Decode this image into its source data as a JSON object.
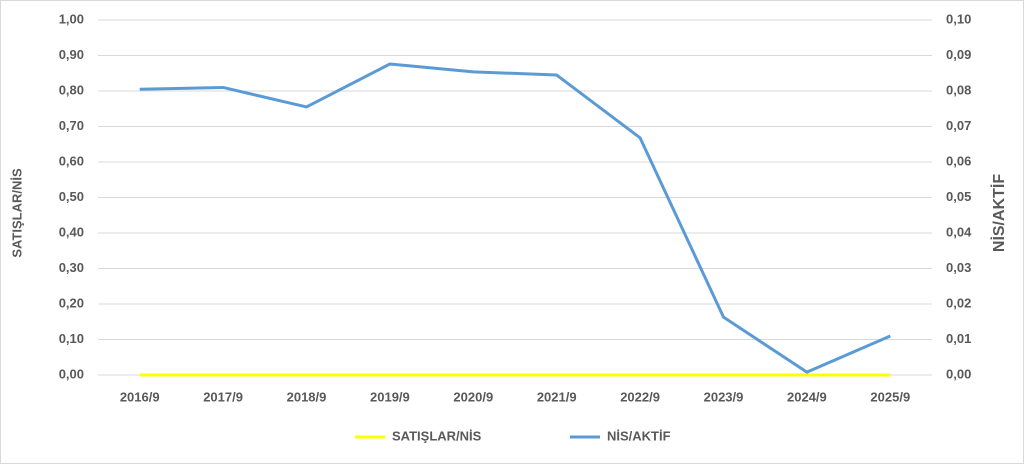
{
  "chart_data": {
    "type": "line",
    "categories": [
      "2016/9",
      "2017/9",
      "2018/9",
      "2019/9",
      "2020/9",
      "2021/9",
      "2022/9",
      "2023/9",
      "2024/9",
      "2025/9"
    ],
    "y_label": "SATIŞLAR/NİS",
    "y2_label": "NİS/AKTİF",
    "ylim": [
      0,
      1
    ],
    "yticks": [
      {
        "value": 0,
        "label": "0,00"
      },
      {
        "value": 0.1,
        "label": "0,10"
      },
      {
        "value": 0.2,
        "label": "0,20"
      },
      {
        "value": 0.3,
        "label": "0,30"
      },
      {
        "value": 0.4,
        "label": "0,40"
      },
      {
        "value": 0.5,
        "label": "0,50"
      },
      {
        "value": 0.6,
        "label": "0,60"
      },
      {
        "value": 0.7,
        "label": "0,70"
      },
      {
        "value": 0.8,
        "label": "0,80"
      },
      {
        "value": 0.9,
        "label": "0,90"
      },
      {
        "value": 1,
        "label": "1,00"
      }
    ],
    "y2lim": [
      0,
      0.1
    ],
    "y2ticks": [
      {
        "value": 0,
        "label": "0,00"
      },
      {
        "value": 0.01,
        "label": "0,01"
      },
      {
        "value": 0.02,
        "label": "0,02"
      },
      {
        "value": 0.03,
        "label": "0,03"
      },
      {
        "value": 0.04,
        "label": "0,04"
      },
      {
        "value": 0.05,
        "label": "0,05"
      },
      {
        "value": 0.06,
        "label": "0,06"
      },
      {
        "value": 0.07,
        "label": "0,07"
      },
      {
        "value": 0.08,
        "label": "0,08"
      },
      {
        "value": 0.09,
        "label": "0,09"
      },
      {
        "value": 0.1,
        "label": "0,10"
      }
    ],
    "grid": true,
    "legend": "bottom",
    "series": [
      {
        "name": "SATIŞLAR/NİS",
        "color": "#ffff00",
        "values": [
          0,
          0,
          0,
          0,
          0,
          0,
          0,
          0,
          0,
          0
        ]
      },
      {
        "name": "NİS/AKTİF",
        "color": "#5b9bd5",
        "axis": "y2",
        "values": [
          0.0805,
          0.081,
          0.0755,
          0.0876,
          0.0854,
          0.0845,
          0.0668,
          0.0163,
          0.0008,
          0.011
        ]
      }
    ]
  }
}
